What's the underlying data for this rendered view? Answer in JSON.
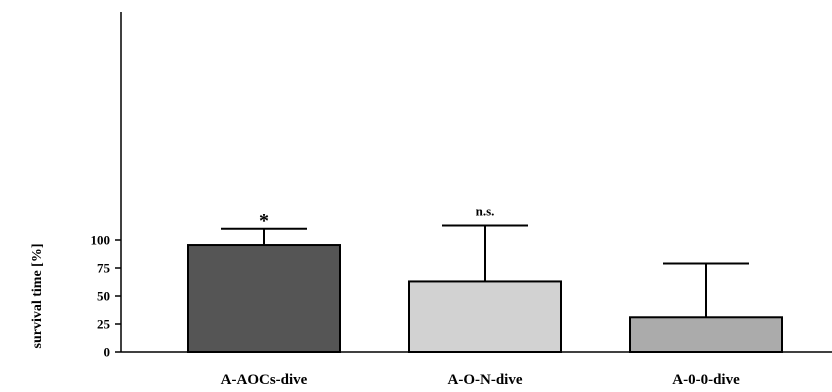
{
  "chart_data": {
    "type": "bar",
    "title": "",
    "xlabel": "",
    "ylabel": "survival time [%]",
    "ylim": [
      0,
      120
    ],
    "yticks": [
      0,
      25,
      50,
      75,
      100
    ],
    "ytick_labels": [
      "0",
      "25",
      "50",
      "75",
      "100"
    ],
    "grid": false,
    "categories": [
      "A-AOCs-dive",
      "A-O-N-dive",
      "A-0-0-dive"
    ],
    "values": [
      95.5,
      63,
      31
    ],
    "errors": [
      14.5,
      50,
      48
    ],
    "annotations": [
      "*",
      "n.s.",
      ""
    ],
    "bar_colors": [
      "#555555",
      "#d2d2d2",
      "#ababab"
    ]
  }
}
